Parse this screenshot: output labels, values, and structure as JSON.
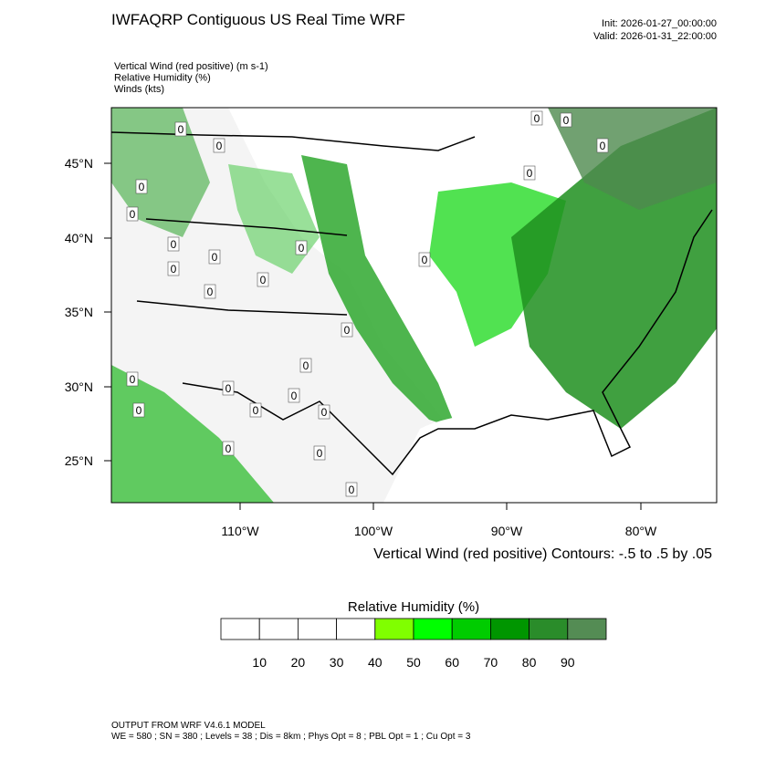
{
  "header": {
    "title": "IWFAQRP Contiguous US Real Time WRF",
    "init": "Init: 2026-01-27_00:00:00",
    "valid": "Valid: 2026-01-31_22:00:00"
  },
  "fields": [
    "Vertical Wind (red positive)   (m s-1)",
    "Relative Humidity   (%)",
    "Winds   (kts)"
  ],
  "map": {
    "lat_labels": [
      "45°N",
      "40°N",
      "35°N",
      "30°N",
      "25°N"
    ],
    "lon_labels": [
      "110°W",
      "100°W",
      "90°W",
      "80°W"
    ],
    "contour_label": "0"
  },
  "contour_note": "Vertical Wind (red positive) Contours: -.5 to .5 by .05",
  "colorbar": {
    "title": "Relative Humidity  (%)",
    "labels": [
      "10",
      "20",
      "30",
      "40",
      "50",
      "60",
      "70",
      "80",
      "90"
    ],
    "colors": [
      "#ffffff",
      "#ffffff",
      "#ffffff",
      "#ffffff",
      "#80ff00",
      "#00ff00",
      "#00cc00",
      "#009600",
      "#2a8c2a",
      "#548c54"
    ]
  },
  "footer": [
    "OUTPUT FROM WRF V4.6.1 MODEL",
    "WE = 580 ; SN = 380 ; Levels = 38 ; Dis = 8km ; Phys Opt = 8 ; PBL Opt = 1 ; Cu Opt = 3"
  ]
}
